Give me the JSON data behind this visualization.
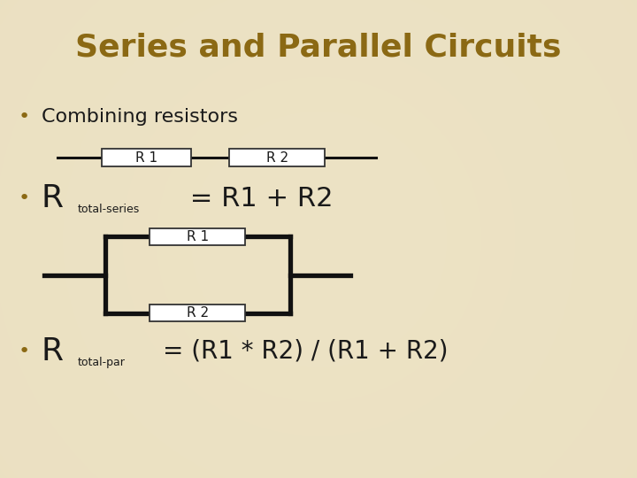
{
  "title": "Series and Parallel Circuits",
  "title_color": "#8B6914",
  "title_fontsize": 26,
  "title_fontweight": "bold",
  "background_color": "#EDE3C5",
  "bullet_color": "#8B6914",
  "text_color": "#1A1A1A",
  "line_color": "#111111",
  "box_color": "#FFFFFF",
  "box_edge_color": "#333333",
  "bullet1": "Combining resistors",
  "bullet2_r": "R",
  "bullet2_sub": "total-series",
  "bullet2_eq": " = R1 + R2",
  "bullet3_r": "R",
  "bullet3_sub": "total-par",
  "bullet3_eq": "= (R1 * R2) / (R1 + R2)",
  "series_r1_label": "R 1",
  "series_r2_label": "R 2",
  "parallel_r1_label": "R 1",
  "parallel_r2_label": "R 2"
}
